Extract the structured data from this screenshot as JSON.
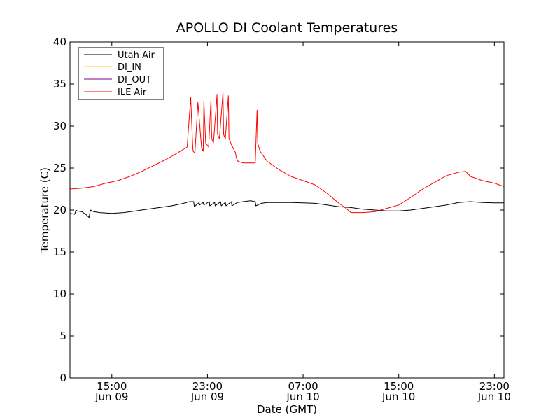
{
  "chart_data": {
    "type": "line",
    "title": "APOLLO DI Coolant Temperatures",
    "xlabel": "Date (GMT)",
    "ylabel": "Temperature (C)",
    "xlim": [
      11.5,
      47.8
    ],
    "ylim": [
      0,
      40
    ],
    "grid": false,
    "legend_position": "top-left",
    "x_unit": "hours since Jun 09 00:00 GMT",
    "yticks": [
      {
        "value": 0,
        "label": "0"
      },
      {
        "value": 5,
        "label": "5"
      },
      {
        "value": 10,
        "label": "10"
      },
      {
        "value": 15,
        "label": "15"
      },
      {
        "value": 20,
        "label": "20"
      },
      {
        "value": 25,
        "label": "25"
      },
      {
        "value": 30,
        "label": "30"
      },
      {
        "value": 35,
        "label": "35"
      },
      {
        "value": 40,
        "label": "40"
      }
    ],
    "xticks": [
      {
        "value": 15,
        "time": "15:00",
        "date": "Jun 09"
      },
      {
        "value": 23,
        "time": "23:00",
        "date": "Jun 09"
      },
      {
        "value": 31,
        "time": "07:00",
        "date": "Jun 10"
      },
      {
        "value": 39,
        "time": "15:00",
        "date": "Jun 10"
      },
      {
        "value": 47,
        "time": "23:00",
        "date": "Jun 10"
      }
    ],
    "series": [
      {
        "name": "Utah Air",
        "color": "#000000",
        "x": [
          11.5,
          11.9,
          12.0,
          12.1,
          12.5,
          12.9,
          13.1,
          13.2,
          13.5,
          14.0,
          15.0,
          16.0,
          17.0,
          18.0,
          19.0,
          20.0,
          21.0,
          21.5,
          21.85,
          21.9,
          22.3,
          22.35,
          22.65,
          22.7,
          23.15,
          23.2,
          23.6,
          23.65,
          24.1,
          24.15,
          24.5,
          24.55,
          25.0,
          25.05,
          25.5,
          26.0,
          26.6,
          27.0,
          27.05,
          27.5,
          28.0,
          29.0,
          30.0,
          31.0,
          32.0,
          33.0,
          34.0,
          35.0,
          36.0,
          37.0,
          38.0,
          39.0,
          40.0,
          41.0,
          42.0,
          43.0,
          44.0,
          45.0,
          46.0,
          47.0,
          47.8
        ],
        "y": [
          19.6,
          19.5,
          20.0,
          19.9,
          19.8,
          19.4,
          19.1,
          20.0,
          19.8,
          19.7,
          19.6,
          19.7,
          19.9,
          20.1,
          20.3,
          20.5,
          20.8,
          21.0,
          21.0,
          20.4,
          20.9,
          20.6,
          20.9,
          20.6,
          21.0,
          20.5,
          20.9,
          20.5,
          21.0,
          20.5,
          20.9,
          20.5,
          21.0,
          20.5,
          20.9,
          21.0,
          21.1,
          21.0,
          20.5,
          20.8,
          20.9,
          20.9,
          20.9,
          20.85,
          20.8,
          20.6,
          20.4,
          20.3,
          20.1,
          20.0,
          19.9,
          19.9,
          20.0,
          20.2,
          20.4,
          20.6,
          20.9,
          21.0,
          20.9,
          20.85,
          20.85
        ]
      },
      {
        "name": "DI_IN",
        "color": "#ffcc33",
        "x": [],
        "y": []
      },
      {
        "name": "DI_OUT",
        "color": "#800080",
        "x": [],
        "y": []
      },
      {
        "name": "ILE Air",
        "color": "#ff0000",
        "x": [
          11.5,
          12.5,
          13.5,
          14.5,
          15.5,
          16.5,
          17.5,
          18.5,
          19.5,
          20.5,
          21.3,
          21.6,
          21.75,
          21.8,
          21.95,
          22.2,
          22.5,
          22.65,
          22.7,
          22.85,
          23.1,
          23.3,
          23.35,
          23.5,
          23.8,
          23.85,
          24.0,
          24.3,
          24.35,
          24.5,
          24.75,
          24.8,
          25.0,
          25.35,
          25.4,
          25.55,
          26.0,
          27.0,
          27.15,
          27.2,
          27.4,
          28.0,
          29.0,
          30.0,
          31.0,
          32.0,
          33.0,
          34.0,
          34.6,
          35.0,
          36.0,
          37.0,
          38.0,
          39.0,
          40.0,
          41.0,
          42.0,
          43.0,
          44.0,
          44.6,
          45.0,
          46.0,
          47.0,
          47.8
        ],
        "y": [
          22.5,
          22.6,
          22.8,
          23.2,
          23.5,
          24.0,
          24.6,
          25.3,
          26.0,
          26.8,
          27.5,
          33.4,
          28.0,
          27.0,
          26.8,
          32.8,
          27.5,
          27.0,
          33.0,
          28.0,
          27.5,
          33.2,
          28.5,
          28.0,
          33.7,
          29.0,
          28.5,
          34.0,
          29.0,
          28.5,
          33.6,
          28.5,
          27.8,
          26.8,
          26.3,
          25.8,
          25.6,
          25.6,
          31.9,
          28.0,
          27.0,
          25.8,
          24.8,
          24.0,
          23.5,
          23.0,
          22.0,
          20.8,
          20.2,
          19.7,
          19.7,
          19.8,
          20.2,
          20.6,
          21.5,
          22.5,
          23.3,
          24.1,
          24.5,
          24.6,
          24.0,
          23.5,
          23.2,
          22.8
        ]
      }
    ]
  }
}
